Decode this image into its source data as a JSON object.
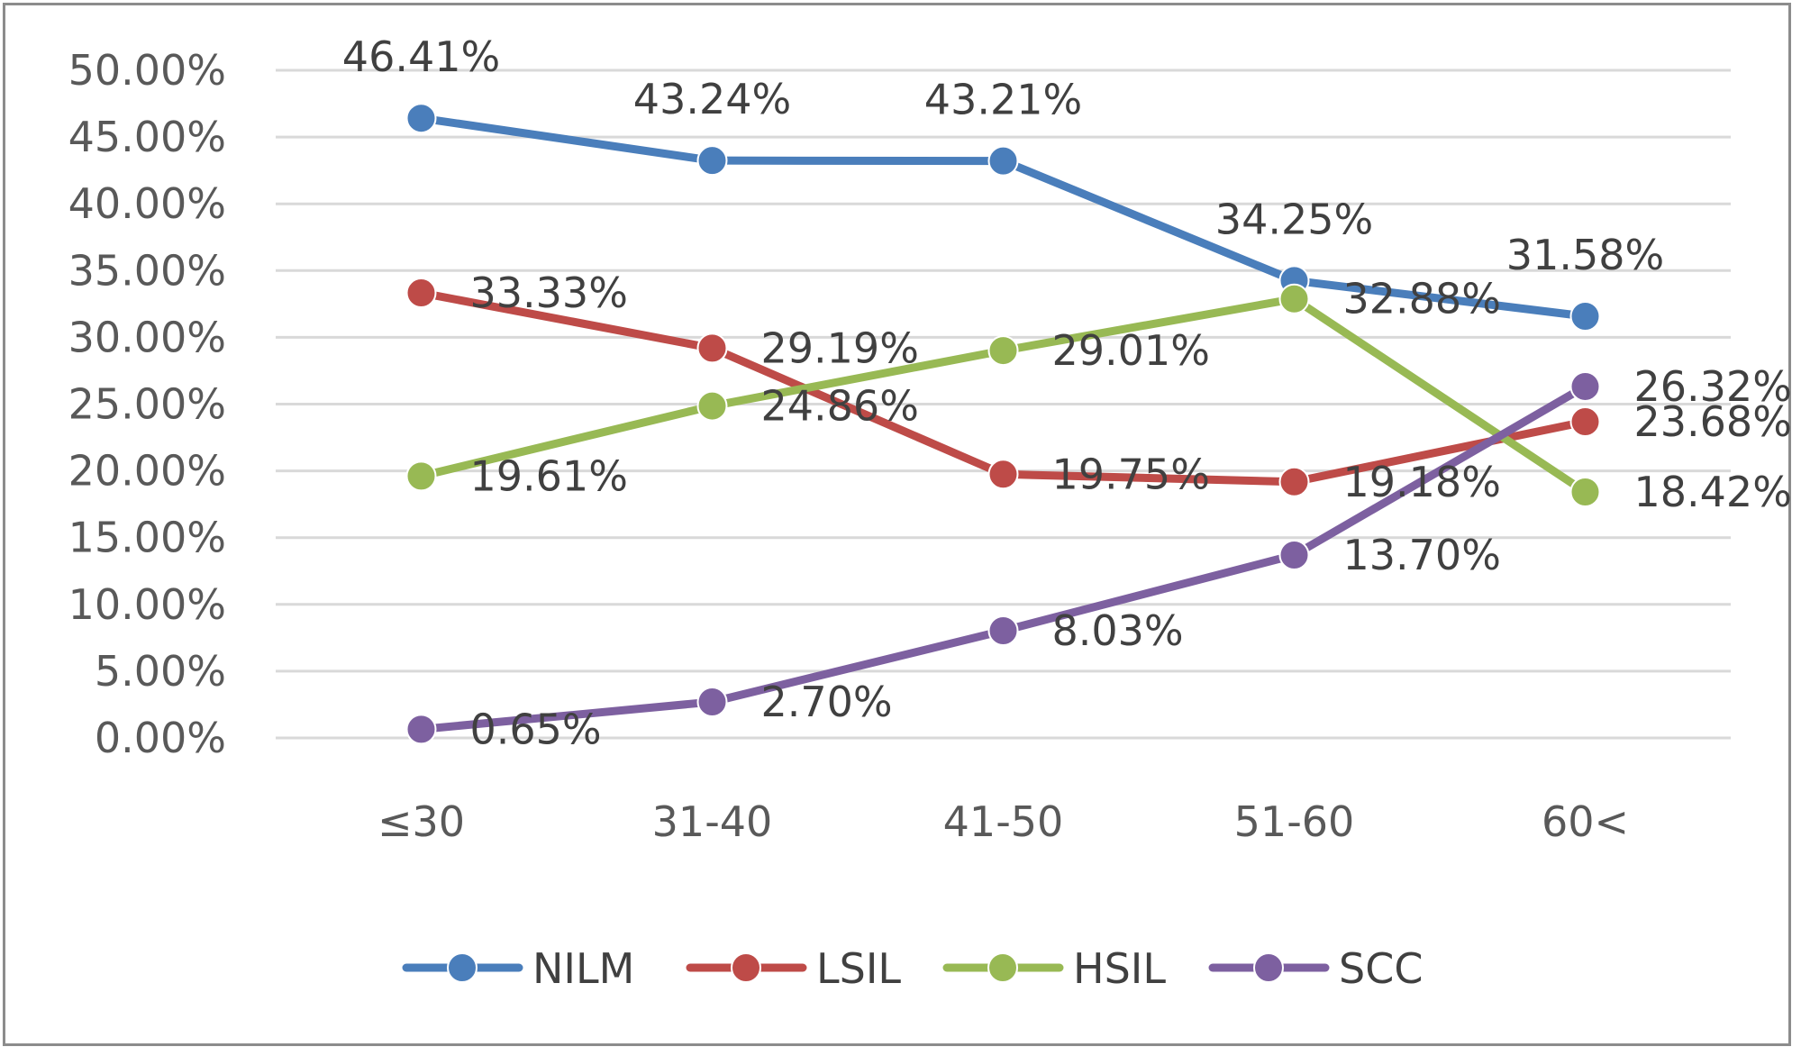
{
  "chart_data": {
    "type": "line",
    "title": "",
    "xlabel": "",
    "ylabel": "",
    "categories": [
      "≤30",
      "31-40",
      "41-50",
      "51-60",
      "60<"
    ],
    "ylim": [
      0,
      50
    ],
    "ytick_values": [
      0,
      5,
      10,
      15,
      20,
      25,
      30,
      35,
      40,
      45,
      50
    ],
    "ytick_labels": [
      "0.00%",
      "5.00%",
      "10.00%",
      "15.00%",
      "20.00%",
      "25.00%",
      "30.00%",
      "35.00%",
      "40.00%",
      "45.00%",
      "50.00%"
    ],
    "grid": true,
    "legend_position": "bottom",
    "series": [
      {
        "name": "NILM",
        "color": "#4a7ebb",
        "values": [
          46.41,
          43.24,
          43.21,
          34.25,
          31.58
        ],
        "labels": [
          "46.41%",
          "43.24%",
          "43.21%",
          "34.25%",
          "31.58%"
        ],
        "label_position": "above"
      },
      {
        "name": "LSIL",
        "color": "#be4b48",
        "values": [
          33.33,
          29.19,
          19.75,
          19.18,
          23.68
        ],
        "labels": [
          "33.33%",
          "29.19%",
          "19.75%",
          "19.18%",
          "23.68%"
        ],
        "label_position": "right"
      },
      {
        "name": "HSIL",
        "color": "#98b954",
        "values": [
          19.61,
          24.86,
          29.01,
          32.88,
          18.42
        ],
        "labels": [
          "19.61%",
          "24.86%",
          "29.01%",
          "32.88%",
          "18.42%"
        ],
        "label_position": "right"
      },
      {
        "name": "SCC",
        "color": "#7d60a0",
        "values": [
          0.65,
          2.7,
          8.03,
          13.7,
          26.32
        ],
        "labels": [
          "0.65%",
          "2.70%",
          "8.03%",
          "13.70%",
          "26.32%"
        ],
        "label_position": "right"
      }
    ]
  }
}
